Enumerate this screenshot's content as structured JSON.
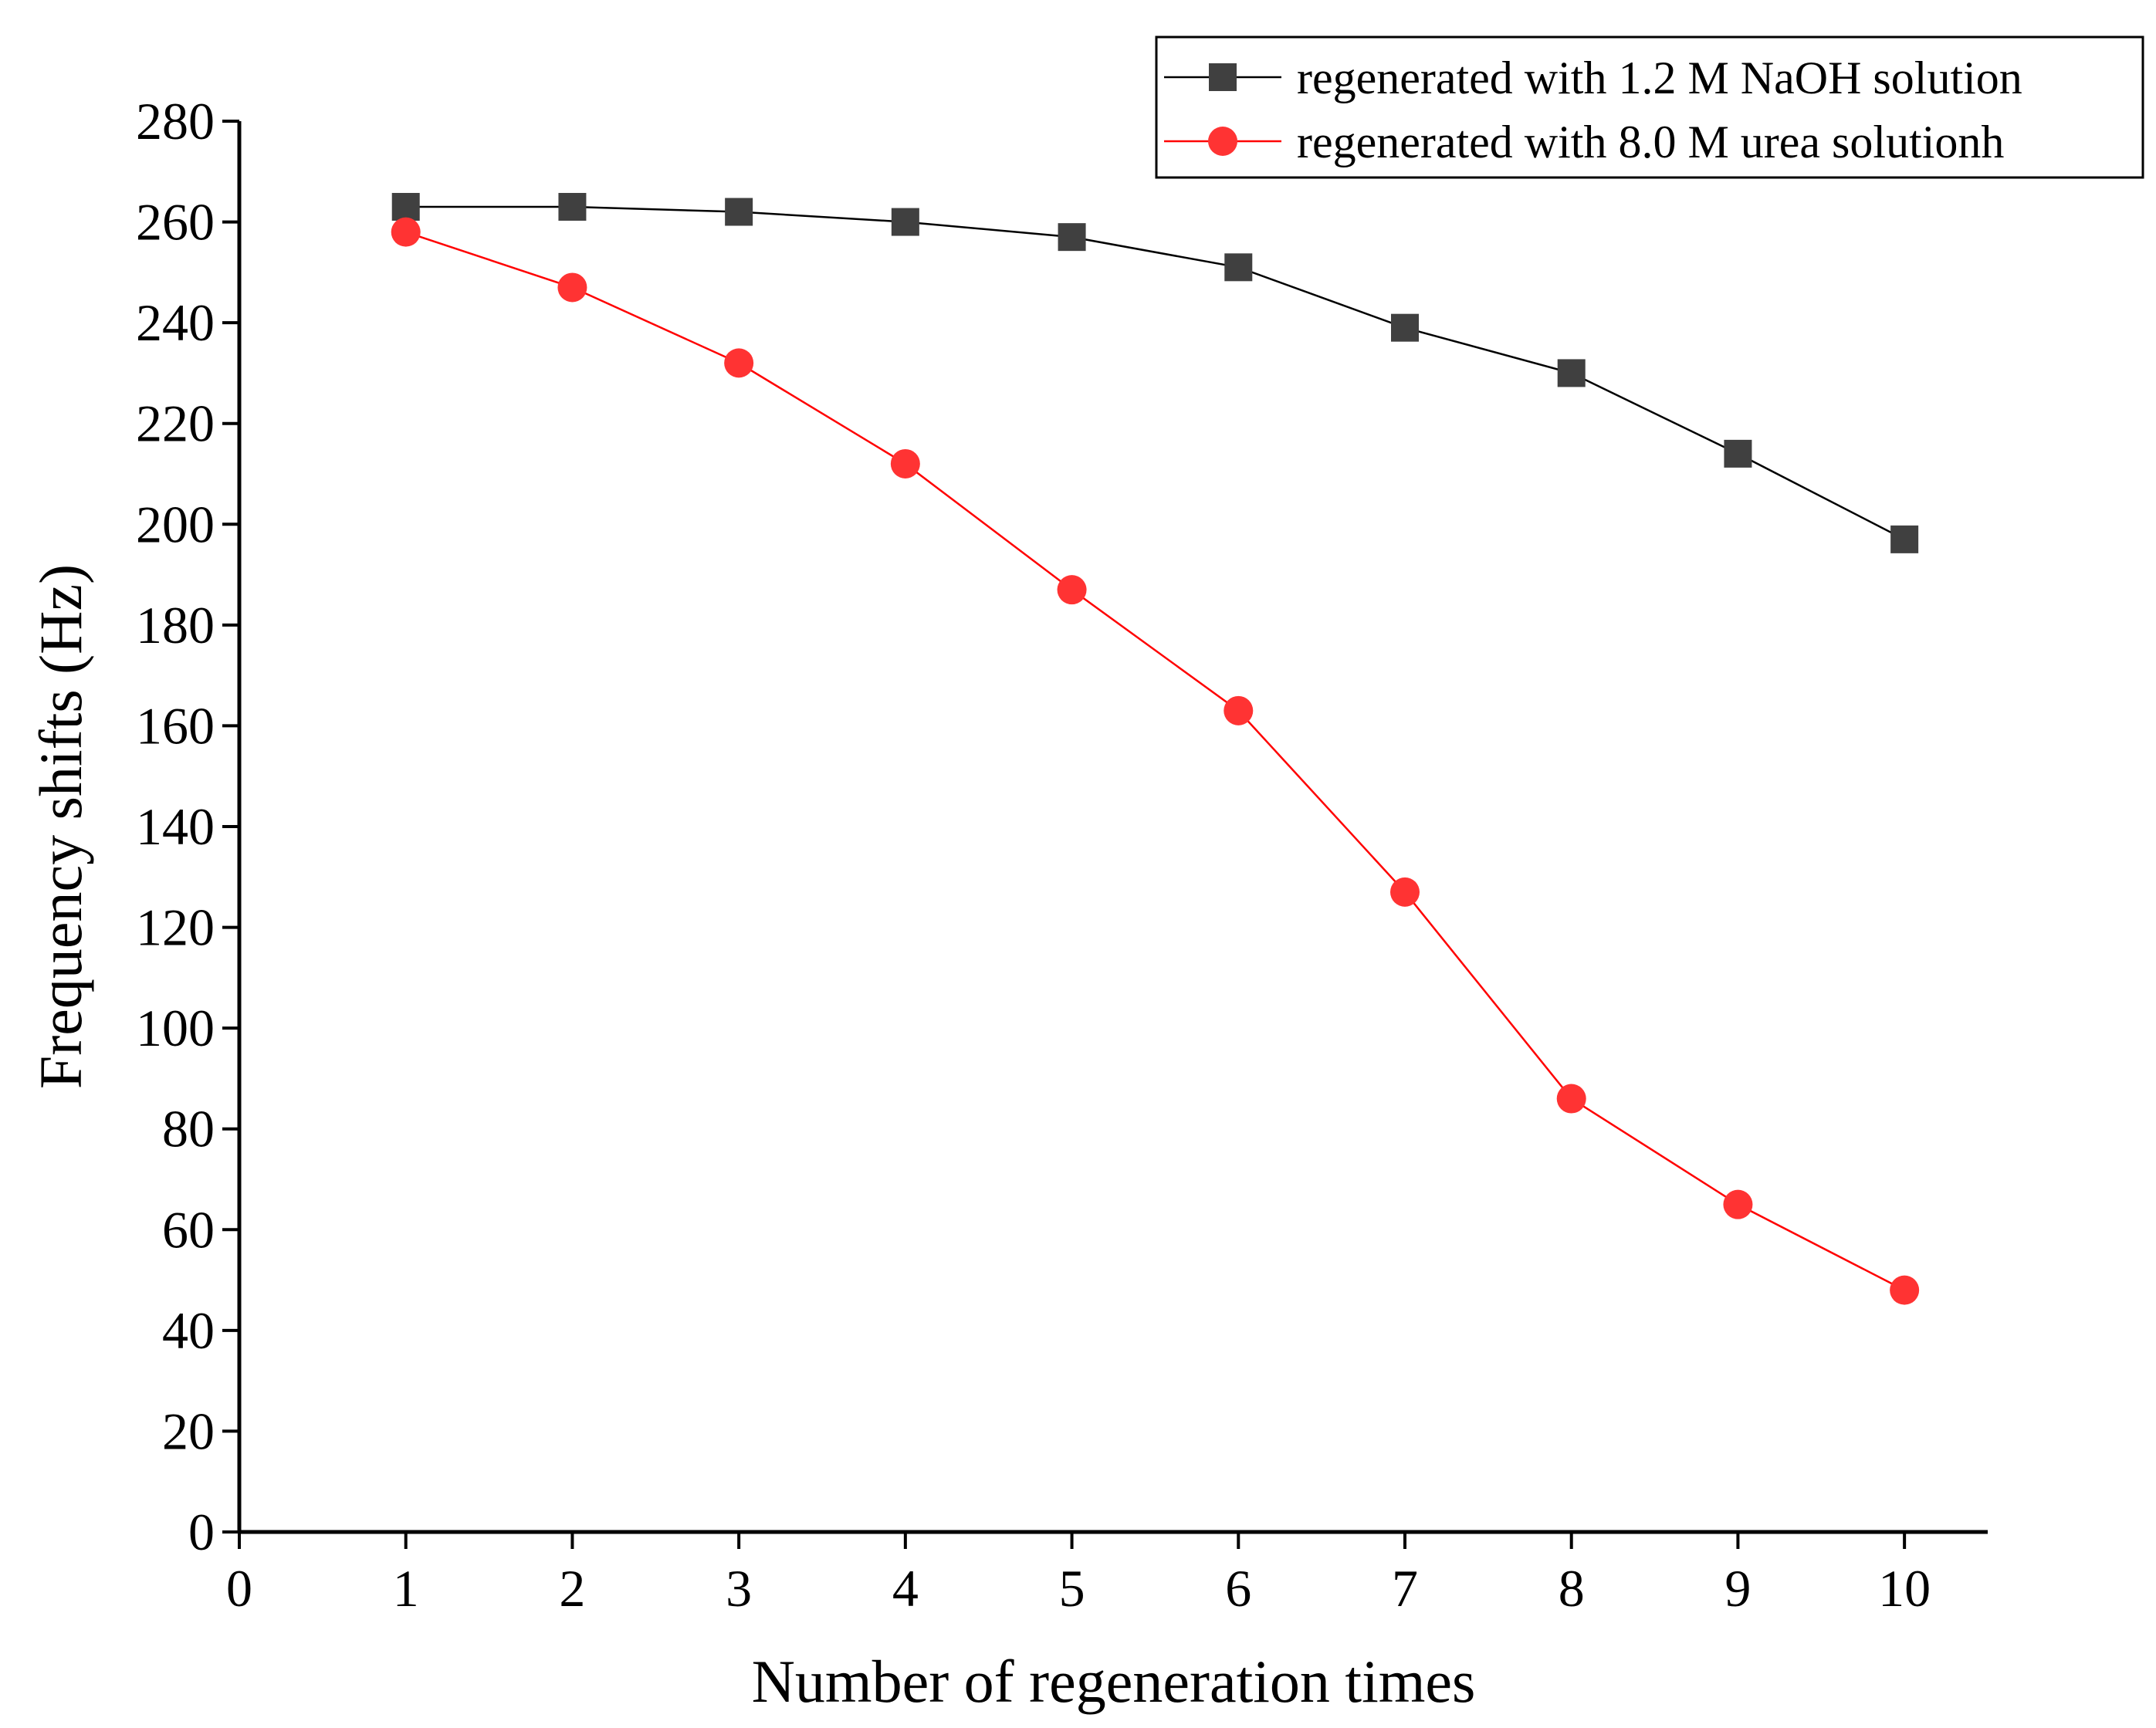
{
  "chart_data": {
    "type": "line",
    "title": "",
    "xlabel": "Number of regeneration times",
    "ylabel": "Frequency shifts (Hz)",
    "xlim": [
      0,
      10.5
    ],
    "ylim": [
      0,
      280
    ],
    "xticks": [
      0,
      1,
      2,
      3,
      4,
      5,
      6,
      7,
      8,
      9,
      10
    ],
    "yticks": [
      0,
      20,
      40,
      60,
      80,
      100,
      120,
      140,
      160,
      180,
      200,
      220,
      240,
      260,
      280
    ],
    "grid": false,
    "legend_position": "top-right",
    "x": [
      1,
      2,
      3,
      4,
      5,
      6,
      7,
      8,
      9,
      10
    ],
    "series": [
      {
        "name": "regenerated with 1.2 M NaOH solution",
        "marker": "square",
        "marker_color": "#404040",
        "line_color": "#000000",
        "values": [
          263,
          263,
          262,
          260,
          257,
          251,
          239,
          230,
          214,
          197
        ]
      },
      {
        "name": "regenerated with 8.0 M urea solutionh",
        "marker": "circle",
        "marker_color": "#ff3333",
        "line_color": "#ff0000",
        "values": [
          258,
          247,
          232,
          212,
          187,
          163,
          127,
          86,
          65,
          48
        ]
      }
    ]
  }
}
